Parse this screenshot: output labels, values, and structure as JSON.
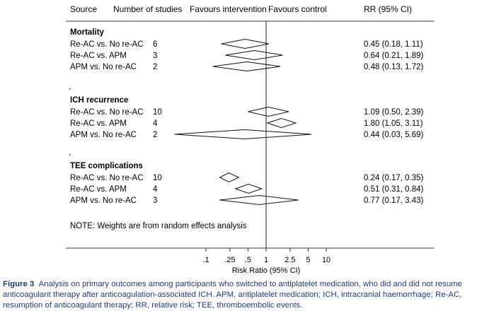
{
  "header": {
    "source": "Source",
    "studies": "Number of studies",
    "fav_int": "Favours intervention",
    "fav_ctrl": "Favours control",
    "rr": "RR (95% CI)"
  },
  "chart_data": {
    "type": "forest",
    "x_scale": "log",
    "xlabel": "Risk Ratio (95% CI)",
    "x_ticks": [
      0.1,
      0.25,
      0.5,
      1,
      2.5,
      5,
      10
    ],
    "x_tick_labels": [
      ".1",
      ".25",
      ".5",
      "1",
      "2.5",
      "5",
      "10"
    ],
    "reference_line": 1,
    "groups": [
      {
        "label": "Mortality",
        "rows": [
          {
            "label": "Re-AC vs. No re-AC",
            "studies": "6",
            "rr": 0.45,
            "lo": 0.18,
            "hi": 1.11,
            "text": "0.45 (0.18, 1.11)"
          },
          {
            "label": "Re-AC vs. APM",
            "studies": "3",
            "rr": 0.64,
            "lo": 0.21,
            "hi": 1.89,
            "text": "0.64 (0.21, 1.89)"
          },
          {
            "label": "APM vs. No re-AC",
            "studies": "2",
            "rr": 0.48,
            "lo": 0.13,
            "hi": 1.72,
            "text": "0.48 (0.13, 1.72)"
          }
        ]
      },
      {
        "label": "ICH recurrence",
        "rows": [
          {
            "label": "Re-AC vs. No re-AC",
            "studies": "10",
            "rr": 1.09,
            "lo": 0.5,
            "hi": 2.39,
            "text": "1.09 (0.50, 2.39)"
          },
          {
            "label": "Re-AC vs. APM",
            "studies": "4",
            "rr": 1.8,
            "lo": 1.05,
            "hi": 3.11,
            "text": "1.80 (1.05, 3.11)"
          },
          {
            "label": "APM vs. No re-AC",
            "studies": "2",
            "rr": 0.44,
            "lo": 0.03,
            "hi": 5.69,
            "text": "0.44 (0.03, 5.69)"
          }
        ]
      },
      {
        "label": "TEE complications",
        "rows": [
          {
            "label": "Re-AC vs. No re-AC",
            "studies": "10",
            "rr": 0.24,
            "lo": 0.17,
            "hi": 0.35,
            "text": "0.24 (0.17, 0.35)"
          },
          {
            "label": "Re-AC vs. APM",
            "studies": "4",
            "rr": 0.51,
            "lo": 0.31,
            "hi": 0.84,
            "text": "0.51 (0.31, 0.84)"
          },
          {
            "label": "APM vs. No re-AC",
            "studies": "3",
            "rr": 0.77,
            "lo": 0.17,
            "hi": 3.43,
            "text": "0.77 (0.17, 3.43)"
          }
        ]
      }
    ],
    "note": "NOTE: Weights are from random effects analysis"
  },
  "caption": {
    "label": "Figure 3",
    "text": "Analysis on primary outcomes among participants who switched to antiplatelet medication, who did and did not resume anticoagulant therapy after anticoagulation-associated ICH. APM, antiplatelet medication; ICH, intracranial haemorrhage; Re-AC, resumption of anticoagulant therapy; RR, relative risk; TEE, thromboembolic events."
  }
}
